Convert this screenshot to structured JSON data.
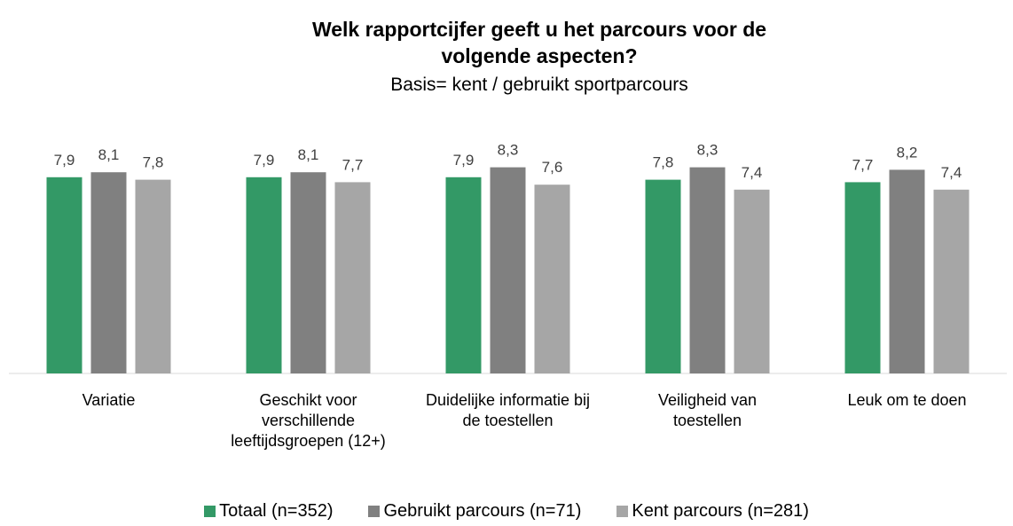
{
  "chart_data": {
    "type": "bar",
    "title": "Welk rapportcijfer geeft u het parcours voor de volgende aspecten?",
    "subtitle": "Basis= kent / gebruikt sportparcours",
    "categories": [
      "Variatie",
      "Geschikt voor verschillende leeftijdsgroepen (12+)",
      "Duidelijke informatie bij de toestellen",
      "Veiligheid van toestellen",
      "Leuk om te doen"
    ],
    "series": [
      {
        "name": "Totaal (n=352)",
        "color": "#339966",
        "values": [
          7.9,
          7.9,
          7.9,
          7.8,
          7.7
        ],
        "value_labels": [
          "7,9",
          "7,9",
          "7,9",
          "7,8",
          "7,7"
        ]
      },
      {
        "name": "Gebruikt parcours (n=71)",
        "color": "#808080",
        "values": [
          8.1,
          8.1,
          8.3,
          8.3,
          8.2
        ],
        "value_labels": [
          "8,1",
          "8,1",
          "8,3",
          "8,3",
          "8,2"
        ]
      },
      {
        "name": "Kent parcours (n=281)",
        "color": "#a6a6a6",
        "values": [
          7.8,
          7.7,
          7.6,
          7.4,
          7.4
        ],
        "value_labels": [
          "7,8",
          "7,7",
          "7,6",
          "7,4",
          "7,4"
        ]
      }
    ],
    "ylim": [
      0,
      10
    ],
    "legend": "bottom"
  }
}
